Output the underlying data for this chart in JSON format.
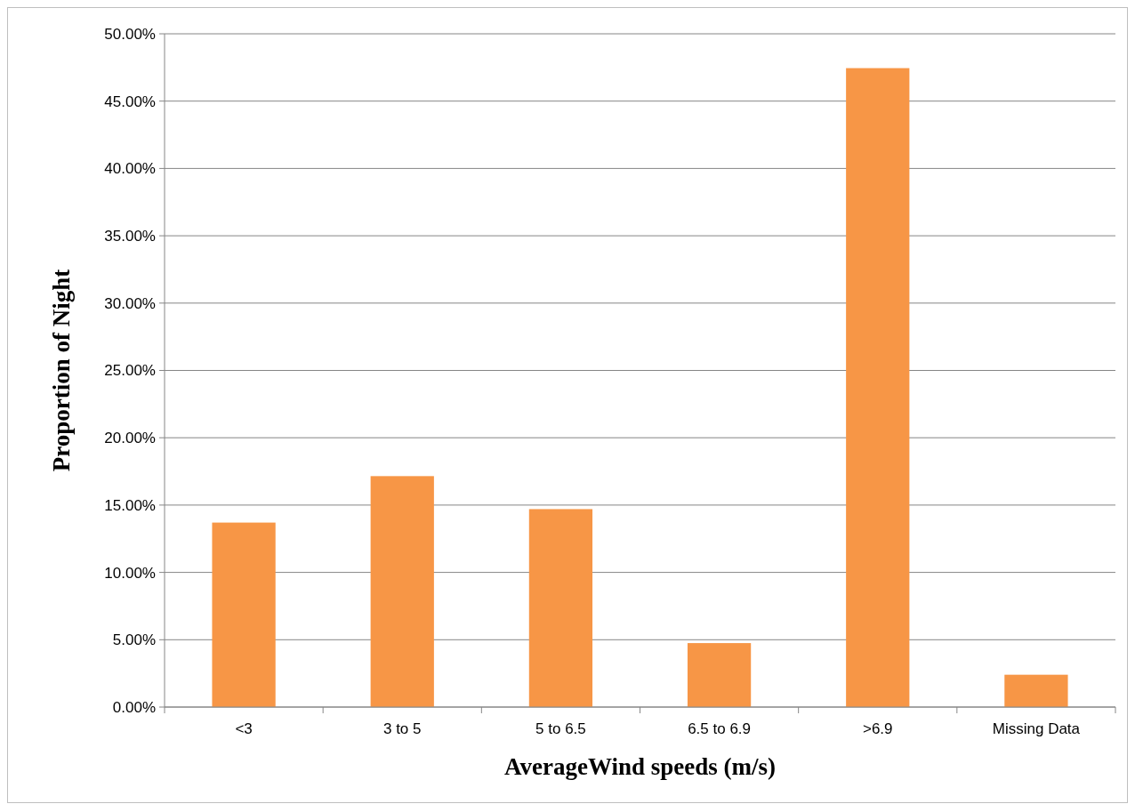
{
  "chart_data": {
    "type": "bar",
    "xlabel": "AverageWind speeds  (m/s)",
    "ylabel": "Proportion of Night",
    "categories": [
      "<3",
      "3 to 5",
      "5 to 6.5",
      "6.5 to 6.9",
      ">6.9",
      "Missing Data"
    ],
    "values": [
      13.7,
      17.15,
      14.7,
      4.75,
      47.45,
      2.4
    ],
    "color": "#f79646",
    "ylim": [
      0,
      50
    ],
    "yticks": [
      {
        "value": 0,
        "label": "0.00%"
      },
      {
        "value": 5,
        "label": "5.00%"
      },
      {
        "value": 10,
        "label": "10.00%"
      },
      {
        "value": 15,
        "label": "15.00%"
      },
      {
        "value": 20,
        "label": "20.00%"
      },
      {
        "value": 25,
        "label": "25.00%"
      },
      {
        "value": 30,
        "label": "30.00%"
      },
      {
        "value": 35,
        "label": "35.00%"
      },
      {
        "value": 40,
        "label": "40.00%"
      },
      {
        "value": 45,
        "label": "45.00%"
      },
      {
        "value": 50,
        "label": "50.00%"
      }
    ],
    "grid": "y"
  }
}
